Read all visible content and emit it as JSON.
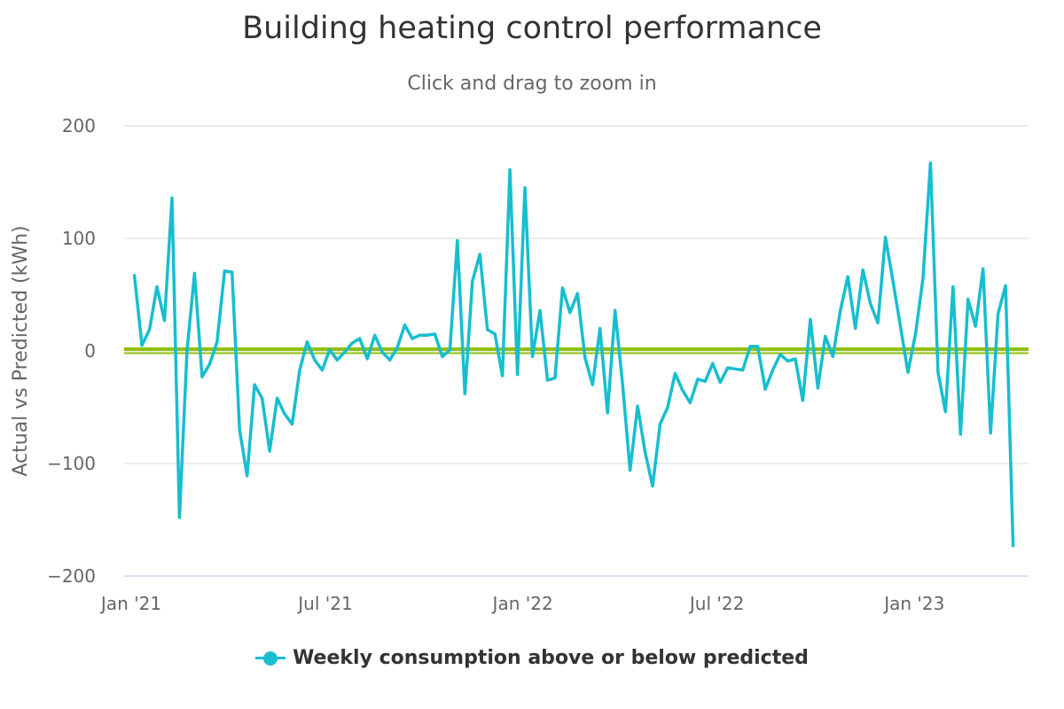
{
  "chart_data": {
    "type": "line",
    "title": "Building heating control performance",
    "subtitle": "Click and drag to zoom in",
    "xlabel": "",
    "ylabel": "Actual vs Predicted (kWh)",
    "ylim": [
      -200,
      200
    ],
    "yticks": [
      200,
      100,
      0,
      -100,
      -200
    ],
    "ytick_labels": [
      "200",
      "100",
      "0",
      "−100",
      "−200"
    ],
    "xticks": [
      {
        "label": "Jan '21",
        "date": "2021-01-01"
      },
      {
        "label": "Jul '21",
        "date": "2021-07-01"
      },
      {
        "label": "Jan '22",
        "date": "2022-01-01"
      },
      {
        "label": "Jul '22",
        "date": "2022-07-01"
      },
      {
        "label": "Jan '23",
        "date": "2023-01-01"
      }
    ],
    "x_start": "2021-01-04",
    "x_interval": "weekly",
    "grid": true,
    "legend_position": "bottom-center",
    "plot_lines": [
      {
        "name": "zero-reference",
        "value": 0,
        "color": "#90c010"
      }
    ],
    "series": [
      {
        "name": "Weekly consumption above or below predicted",
        "color": "#17becf",
        "values": [
          67,
          5,
          19,
          57,
          27,
          136,
          -148,
          0,
          69,
          -23,
          -12,
          8,
          71,
          70,
          -70,
          -111,
          -30,
          -42,
          -89,
          -42,
          -56,
          -65,
          -17,
          8,
          -8,
          -17,
          1,
          -8,
          -1,
          7,
          11,
          -7,
          14,
          -1,
          -8,
          3,
          23,
          11,
          14,
          14,
          15,
          -5,
          1,
          98,
          -38,
          62,
          86,
          19,
          15,
          -22,
          161,
          -21,
          145,
          -5,
          36,
          -26,
          -24,
          56,
          34,
          51,
          -6,
          -30,
          20,
          -55,
          36,
          -30,
          -106,
          -49,
          -90,
          -120,
          -65,
          -50,
          -20,
          -35,
          -46,
          -25,
          -27,
          -11,
          -28,
          -15,
          -16,
          -17,
          4,
          4,
          -34,
          -17,
          -3,
          -9,
          -7,
          -44,
          28,
          -33,
          13,
          -5,
          36,
          66,
          20,
          72,
          42,
          25,
          101,
          62,
          22,
          -19,
          15,
          64,
          167,
          -19,
          -54,
          57,
          -74,
          46,
          22,
          73,
          -73,
          33,
          58,
          -173
        ]
      }
    ]
  },
  "colors": {
    "series": "#17becf",
    "zero_band": "#90c010",
    "grid": "#e6e6e6",
    "axis_line": "#ccd6eb",
    "tick_text": "#666666",
    "title_text": "#333333"
  }
}
